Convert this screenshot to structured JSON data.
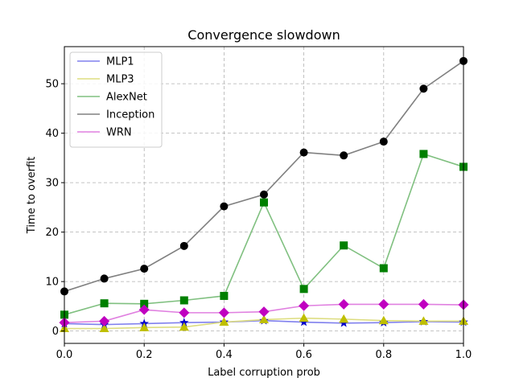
{
  "chart_data": {
    "type": "line",
    "title": "Convergence slowdown",
    "xlabel": "Label corruption prob",
    "ylabel": "Time to overfit",
    "xlim": [
      0.0,
      1.0
    ],
    "ylim": [
      -2.5,
      57.5
    ],
    "x_ticks": [
      0.0,
      0.2,
      0.4,
      0.6,
      0.8,
      1.0
    ],
    "x_tick_labels": [
      "0.0",
      "0.2",
      "0.4",
      "0.6",
      "0.8",
      "1.0"
    ],
    "y_ticks": [
      0,
      10,
      20,
      30,
      40,
      50
    ],
    "y_tick_labels": [
      "0",
      "10",
      "20",
      "30",
      "40",
      "50"
    ],
    "grid": true,
    "legend_position": "top-left",
    "x": [
      0.0,
      0.1,
      0.2,
      0.3,
      0.4,
      0.5,
      0.6,
      0.7,
      0.8,
      0.9,
      1.0
    ],
    "series": [
      {
        "name": "MLP1",
        "line_color": "#8080ee",
        "marker_color": "#0000cc",
        "marker": "star",
        "values": [
          1.5,
          1.3,
          1.5,
          1.7,
          1.8,
          2.1,
          1.8,
          1.6,
          1.7,
          1.9,
          1.8
        ]
      },
      {
        "name": "MLP3",
        "line_color": "#dddd80",
        "marker_color": "#bfbf00",
        "marker": "triangle",
        "values": [
          0.5,
          0.5,
          0.7,
          0.8,
          1.8,
          2.3,
          2.6,
          2.4,
          2.1,
          2.0,
          2.0
        ]
      },
      {
        "name": "AlexNet",
        "line_color": "#80c080",
        "marker_color": "#008000",
        "marker": "square",
        "values": [
          3.3,
          5.6,
          5.5,
          6.2,
          7.1,
          26.0,
          8.5,
          17.3,
          12.7,
          35.8,
          33.2
        ]
      },
      {
        "name": "Inception",
        "line_color": "#808080",
        "marker_color": "#000000",
        "marker": "circle",
        "values": [
          8.0,
          10.6,
          12.6,
          17.2,
          25.2,
          27.6,
          36.1,
          35.5,
          38.3,
          49.0,
          54.6
        ]
      },
      {
        "name": "WRN",
        "line_color": "#e080e0",
        "marker_color": "#c000c0",
        "marker": "diamond",
        "values": [
          1.7,
          2.0,
          4.3,
          3.7,
          3.7,
          3.9,
          5.1,
          5.4,
          5.4,
          5.4,
          5.3
        ]
      }
    ]
  }
}
